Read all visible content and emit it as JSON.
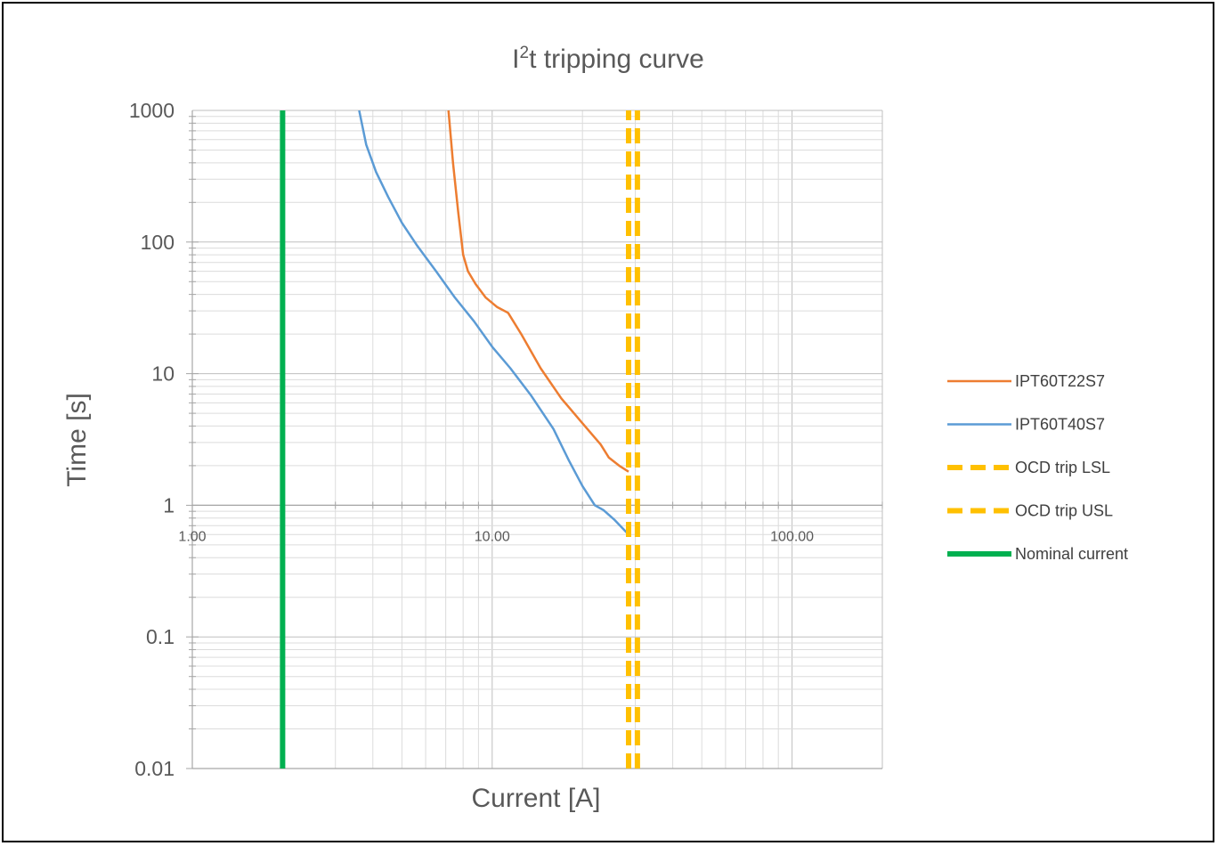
{
  "chart_data": {
    "type": "line",
    "title_main": "I",
    "title_sup": "2",
    "title_rest": "t tripping curve",
    "xlabel": "Current [A]",
    "ylabel": "Time [s]",
    "x_scale": "log",
    "y_scale": "log",
    "xlim": [
      1,
      200
    ],
    "ylim": [
      0.01,
      1000
    ],
    "x_axis_crosses_y_at": 1,
    "grid": true,
    "legend_position": "right",
    "y_ticks": [
      {
        "value": 1000,
        "label": "1000"
      },
      {
        "value": 100,
        "label": "100"
      },
      {
        "value": 10,
        "label": "10"
      },
      {
        "value": 1,
        "label": "1"
      },
      {
        "value": 0.1,
        "label": "0.1"
      },
      {
        "value": 0.01,
        "label": "0.01"
      }
    ],
    "x_ticks": [
      {
        "value": 1,
        "label": "1.00"
      },
      {
        "value": 10,
        "label": "10.00"
      },
      {
        "value": 100,
        "label": "100.00"
      }
    ],
    "series": [
      {
        "name": "IPT60T22S7",
        "color": "#ED7D31",
        "style": "solid",
        "x": [
          7.15,
          7.4,
          7.7,
          8.0,
          8.3,
          8.8,
          9.5,
          10.4,
          11.3,
          12.5,
          14.5,
          17.0,
          20.0,
          23.0,
          24.5,
          26.5,
          28.5
        ],
        "y": [
          1000,
          400,
          170,
          80,
          60,
          48,
          38,
          32,
          29,
          20,
          11,
          6.5,
          4.2,
          2.9,
          2.3,
          2.0,
          1.8
        ]
      },
      {
        "name": "IPT60T40S7",
        "color": "#5B9BD5",
        "style": "solid",
        "x": [
          3.6,
          3.8,
          4.1,
          4.5,
          5.0,
          5.6,
          6.5,
          7.5,
          8.7,
          10.0,
          11.5,
          13.5,
          16.0,
          18.0,
          20.0,
          22.0,
          23.5,
          25.5,
          28.5
        ],
        "y": [
          1000,
          550,
          340,
          220,
          140,
          95,
          60,
          38,
          25,
          16,
          11,
          6.8,
          3.8,
          2.2,
          1.4,
          1.0,
          0.92,
          0.78,
          0.6
        ]
      },
      {
        "name": "OCD trip LSL",
        "color": "#FFC000",
        "style": "dashed",
        "x": [
          28.5,
          28.5
        ],
        "y": [
          0.01,
          1000
        ]
      },
      {
        "name": "OCD trip USL",
        "color": "#FFC000",
        "style": "dashed",
        "x": [
          30.5,
          30.5
        ],
        "y": [
          0.01,
          1000
        ]
      },
      {
        "name": "Nominal current",
        "color": "#00B050",
        "style": "solid",
        "x": [
          2.0,
          2.0
        ],
        "y": [
          0.01,
          1000
        ]
      }
    ]
  }
}
